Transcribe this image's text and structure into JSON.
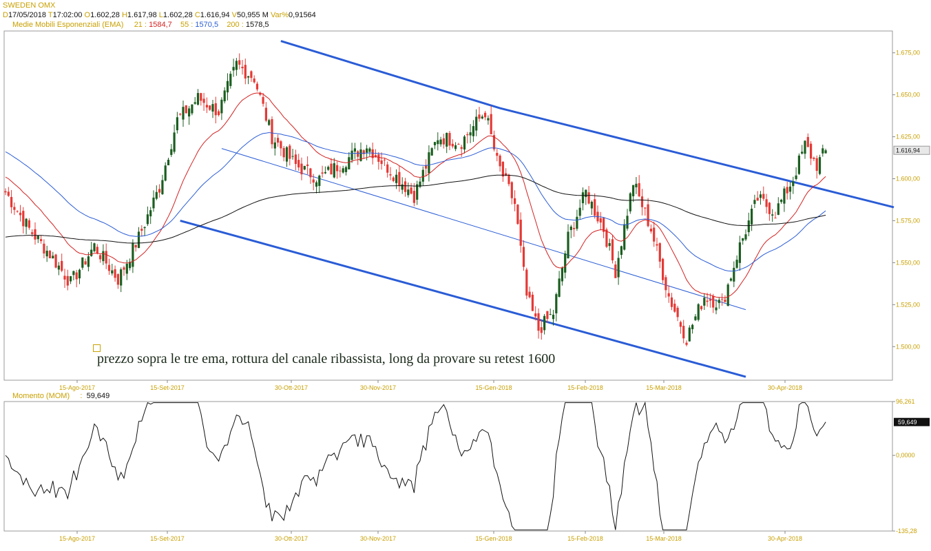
{
  "header": {
    "symbol": "SWEDEN OMX",
    "d_key": "D",
    "date": "17/05/2018",
    "t_key": "T",
    "time": "17:02:00",
    "o_key": "O",
    "open": "1.602,28",
    "h_key": "H",
    "high": "1.617,98",
    "l_key": "L",
    "low": "1.602,28",
    "c_key": "C",
    "close": "1.616,94",
    "v_key": "V",
    "volume": "50,955 M",
    "var_key": "Var%",
    "var": "0,91564"
  },
  "ema_legend": {
    "title": "Medie Mobili Esponenziali (EMA)",
    "p1": "21",
    "v1": "1584,7",
    "p2": "55",
    "v2": "1570,5",
    "p3": "200",
    "v3": "1578,5"
  },
  "mom_legend": {
    "title": "Momento (MOM)",
    "value": "59,649"
  },
  "annotation": "prezzo sopra le tre ema, rottura del canale ribassista, long da provare su retest 1600",
  "colors": {
    "up": "#1b5e20",
    "down": "#e53935",
    "ema21": "#d42020",
    "ema55": "#2a5cd6",
    "ema200": "#111111",
    "channel": "#2a5cd6",
    "axis_text": "#c8a000",
    "grid": "#b0b0b0"
  },
  "chart_data": [
    {
      "type": "candlestick",
      "title": "SWEDEN OMX",
      "x_ticks": [
        "15-Ago-2017",
        "15-Set-2017",
        "30-Ott-2017",
        "30-Nov-2017",
        "15-Gen-2018",
        "15-Feb-2018",
        "15-Mar-2018",
        "30-Apr-2018"
      ],
      "y_ticks": [
        "1.500,00",
        "1.525,00",
        "1.550,00",
        "1.575,00",
        "1.600,00",
        "1.625,00",
        "1.650,00",
        "1.675,00"
      ],
      "y_tick_values": [
        1500,
        1525,
        1550,
        1575,
        1600,
        1625,
        1650,
        1675
      ],
      "ylim": [
        1480,
        1688
      ],
      "last_price_label": "1.616,94",
      "last_price": 1616.94,
      "close_anchors": [
        [
          0,
          1592
        ],
        [
          8,
          1570
        ],
        [
          15,
          1555
        ],
        [
          22,
          1538
        ],
        [
          30,
          1560
        ],
        [
          38,
          1540
        ],
        [
          45,
          1565
        ],
        [
          52,
          1595
        ],
        [
          58,
          1635
        ],
        [
          65,
          1648
        ],
        [
          72,
          1640
        ],
        [
          78,
          1668
        ],
        [
          84,
          1660
        ],
        [
          90,
          1625
        ],
        [
          98,
          1608
        ],
        [
          106,
          1600
        ],
        [
          114,
          1610
        ],
        [
          122,
          1620
        ],
        [
          130,
          1605
        ],
        [
          138,
          1590
        ],
        [
          146,
          1625
        ],
        [
          154,
          1622
        ],
        [
          162,
          1640
        ],
        [
          166,
          1610
        ],
        [
          172,
          1585
        ],
        [
          176,
          1530
        ],
        [
          180,
          1510
        ],
        [
          185,
          1520
        ],
        [
          190,
          1565
        ],
        [
          196,
          1592
        ],
        [
          202,
          1570
        ],
        [
          206,
          1545
        ],
        [
          212,
          1598
        ],
        [
          218,
          1570
        ],
        [
          224,
          1530
        ],
        [
          230,
          1505
        ],
        [
          236,
          1530
        ],
        [
          242,
          1525
        ],
        [
          248,
          1560
        ],
        [
          254,
          1588
        ],
        [
          260,
          1580
        ],
        [
          266,
          1600
        ],
        [
          270,
          1620
        ],
        [
          274,
          1608
        ],
        [
          277,
          1616.94
        ]
      ],
      "ema": [
        {
          "period": 21,
          "value": 1584.7
        },
        {
          "period": 55,
          "value": 1570.5
        },
        {
          "period": 200,
          "value": 1578.5
        }
      ],
      "channel": {
        "upper": [
          [
            93,
            1682
          ],
          [
            167,
            1642
          ],
          [
            300,
            1583
          ]
        ],
        "lower": [
          [
            59,
            1575
          ],
          [
            250,
            1482
          ]
        ],
        "mid": [
          [
            73,
            1618
          ],
          [
            250,
            1522
          ]
        ]
      },
      "bars": 278
    },
    {
      "type": "line",
      "title": "Momento (MOM)",
      "y_ticks": [
        "-135,28",
        "0,0000",
        "96,261"
      ],
      "y_tick_values": [
        -135.28,
        0,
        96.261
      ],
      "ylim": [
        -135.28,
        96.261
      ],
      "last_value_label": "59,649",
      "last_value": 59.649
    }
  ]
}
